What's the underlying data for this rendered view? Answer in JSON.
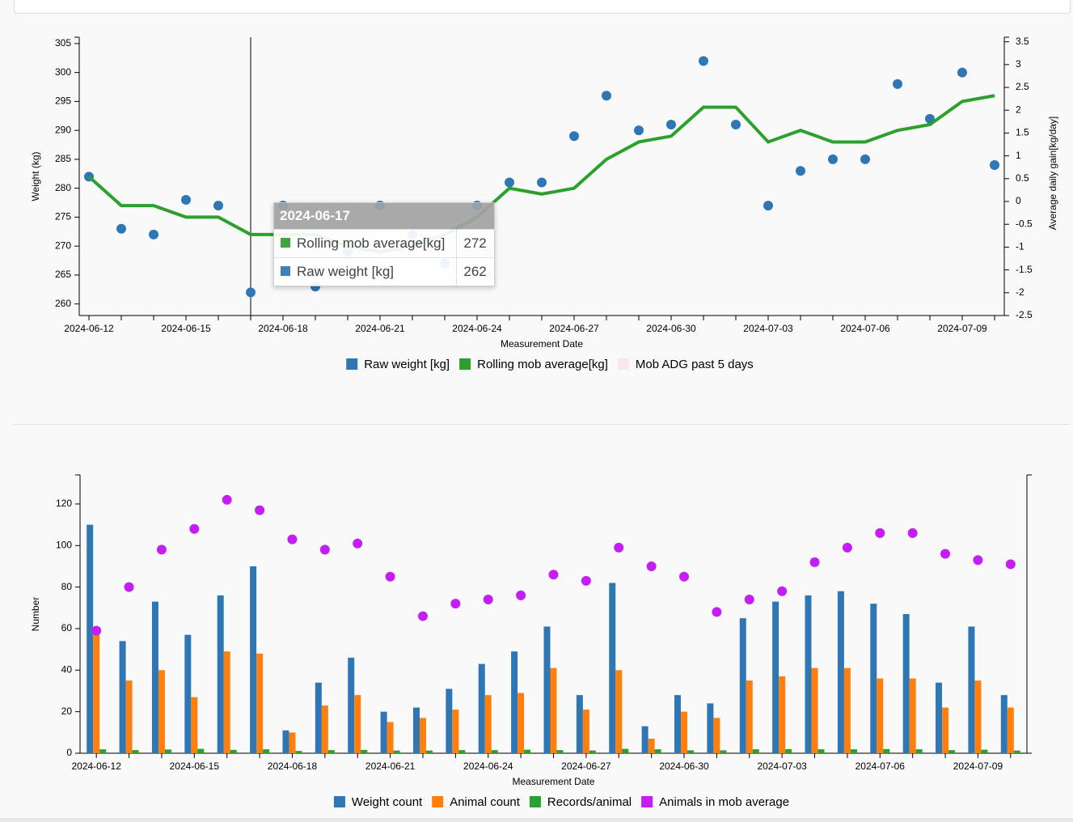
{
  "chart_data": [
    {
      "type": "line",
      "categories": [
        "2024-06-12",
        "2024-06-13",
        "2024-06-14",
        "2024-06-15",
        "2024-06-16",
        "2024-06-17",
        "2024-06-18",
        "2024-06-19",
        "2024-06-20",
        "2024-06-21",
        "2024-06-22",
        "2024-06-23",
        "2024-06-24",
        "2024-06-25",
        "2024-06-26",
        "2024-06-27",
        "2024-06-28",
        "2024-06-29",
        "2024-06-30",
        "2024-07-01",
        "2024-07-02",
        "2024-07-03",
        "2024-07-04",
        "2024-07-05",
        "2024-07-06",
        "2024-07-07",
        "2024-07-08",
        "2024-07-09",
        "2024-07-10"
      ],
      "xticks": [
        "2024-06-12",
        "2024-06-15",
        "2024-06-18",
        "2024-06-21",
        "2024-06-24",
        "2024-06-27",
        "2024-06-30",
        "2024-07-03",
        "2024-07-06",
        "2024-07-09"
      ],
      "xlabel": "Measurement Date",
      "ylabel": "Weight (kg)",
      "y2label": "Average daily gain[kg/day]",
      "ylim": [
        258,
        306.1
      ],
      "yticks": [
        260,
        265,
        270,
        275,
        280,
        285,
        290,
        295,
        300,
        305
      ],
      "y2lim": [
        -2.5,
        3.6
      ],
      "y2ticks": [
        -2.5,
        -2,
        -1.5,
        -1,
        -0.5,
        0,
        0.5,
        1,
        1.5,
        2,
        2.5,
        3,
        3.5
      ],
      "series": [
        {
          "name": "Raw weight [kg]",
          "color": "#2f77b4",
          "mark": "scatter",
          "values": [
            282,
            273,
            272,
            278,
            277,
            262,
            277,
            263,
            269,
            277,
            272,
            267,
            277,
            281,
            281,
            289,
            296,
            290,
            291,
            302,
            291,
            277,
            283,
            285,
            285,
            298,
            292,
            300,
            284
          ]
        },
        {
          "name": "Rolling mob average[kg]",
          "color": "#2ca02c",
          "mark": "line",
          "values": [
            282,
            277,
            277,
            275,
            275,
            272,
            272,
            272,
            270,
            269,
            270,
            272,
            275,
            280,
            279,
            280,
            285,
            288,
            289,
            294,
            294,
            288,
            290,
            288,
            288,
            290,
            291,
            295,
            296
          ]
        },
        {
          "name": "Mob ADG past 5 days",
          "color": "#f4cccc",
          "mark": "line",
          "axis": "y2",
          "hidden": true
        }
      ],
      "tooltip": {
        "title": "2024-06-17",
        "rows": [
          {
            "name": "Rolling mob average[kg]",
            "color": "#2ca02c",
            "value": 272
          },
          {
            "name": "Raw weight [kg]",
            "color": "#2f77b4",
            "value": 262
          }
        ]
      }
    },
    {
      "type": "bar",
      "categories": [
        "2024-06-12",
        "2024-06-13",
        "2024-06-14",
        "2024-06-15",
        "2024-06-16",
        "2024-06-17",
        "2024-06-18",
        "2024-06-19",
        "2024-06-20",
        "2024-06-21",
        "2024-06-22",
        "2024-06-23",
        "2024-06-24",
        "2024-06-25",
        "2024-06-26",
        "2024-06-27",
        "2024-06-28",
        "2024-06-29",
        "2024-06-30",
        "2024-07-01",
        "2024-07-02",
        "2024-07-03",
        "2024-07-04",
        "2024-07-05",
        "2024-07-06",
        "2024-07-07",
        "2024-07-08",
        "2024-07-09",
        "2024-07-10"
      ],
      "xticks": [
        "2024-06-12",
        "2024-06-15",
        "2024-06-18",
        "2024-06-21",
        "2024-06-24",
        "2024-06-27",
        "2024-06-30",
        "2024-07-03",
        "2024-07-06",
        "2024-07-09"
      ],
      "xlabel": "Measurement Date",
      "ylabel": "Number",
      "ylim": [
        0,
        134
      ],
      "yticks": [
        0,
        20,
        40,
        60,
        80,
        100,
        120
      ],
      "series": [
        {
          "name": "Weight count",
          "color": "#2f77b4",
          "mark": "bar",
          "values": [
            110,
            54,
            73,
            57,
            76,
            90,
            11,
            34,
            46,
            20,
            22,
            31,
            43,
            49,
            61,
            28,
            82,
            13,
            28,
            24,
            65,
            73,
            76,
            78,
            72,
            67,
            34,
            61,
            28
          ]
        },
        {
          "name": "Animal count",
          "color": "#ff7f0e",
          "mark": "bar",
          "values": [
            57,
            35,
            40,
            27,
            49,
            48,
            10,
            23,
            28,
            15,
            17,
            21,
            28,
            29,
            41,
            21,
            40,
            7,
            20,
            17,
            35,
            37,
            41,
            41,
            36,
            36,
            22,
            35,
            22
          ]
        },
        {
          "name": "Records/animal",
          "color": "#2ca02c",
          "mark": "bar",
          "values": [
            1.9,
            1.5,
            1.8,
            2.1,
            1.6,
            1.9,
            1.1,
            1.5,
            1.6,
            1.3,
            1.3,
            1.5,
            1.5,
            1.7,
            1.5,
            1.3,
            2.1,
            1.9,
            1.4,
            1.4,
            1.9,
            2,
            1.9,
            1.9,
            2,
            1.9,
            1.5,
            1.7,
            1.3
          ]
        },
        {
          "name": "Animals in mob average",
          "color": "#c41ef5",
          "mark": "scatter",
          "values": [
            59,
            80,
            98,
            108,
            122,
            117,
            103,
            98,
            101,
            85,
            66,
            72,
            74,
            76,
            86,
            83,
            99,
            90,
            85,
            68,
            74,
            78,
            92,
            99,
            106,
            106,
            96,
            93,
            91
          ]
        }
      ]
    }
  ]
}
